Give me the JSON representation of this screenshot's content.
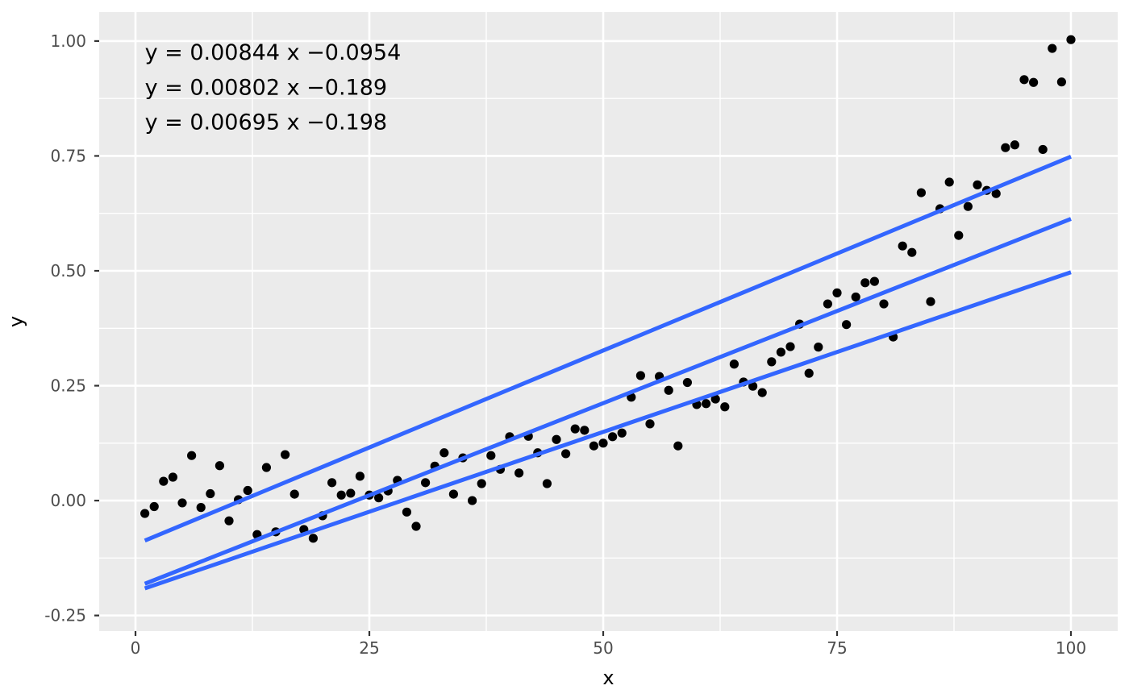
{
  "chart_data": {
    "type": "scatter",
    "title": "",
    "xlabel": "x",
    "ylabel": "y",
    "xlim": [
      -3.88,
      105.0
    ],
    "ylim": [
      -0.284,
      1.063
    ],
    "grid": true,
    "legend": "none",
    "x_ticks": [
      {
        "value": 0,
        "label": "0"
      },
      {
        "value": 25,
        "label": "25"
      },
      {
        "value": 50,
        "label": "50"
      },
      {
        "value": 75,
        "label": "75"
      },
      {
        "value": 100,
        "label": "100"
      }
    ],
    "y_ticks": [
      {
        "value": -0.25,
        "label": "-0.25"
      },
      {
        "value": 0.0,
        "label": "0.00"
      },
      {
        "value": 0.25,
        "label": "0.25"
      },
      {
        "value": 0.5,
        "label": "0.50"
      },
      {
        "value": 0.75,
        "label": "0.75"
      },
      {
        "value": 1.0,
        "label": "1.00"
      }
    ],
    "x_minor_ticks": [
      12.5,
      37.5,
      62.5,
      87.5
    ],
    "y_minor_ticks": [
      -0.125,
      0.125,
      0.375,
      0.625,
      0.875
    ],
    "points": [
      [
        1,
        -0.028
      ],
      [
        2,
        -0.013
      ],
      [
        3,
        0.042
      ],
      [
        4,
        0.051
      ],
      [
        5,
        -0.005
      ],
      [
        6,
        0.098
      ],
      [
        7,
        -0.015
      ],
      [
        8,
        0.015
      ],
      [
        9,
        0.076
      ],
      [
        10,
        -0.044
      ],
      [
        11,
        0.002
      ],
      [
        12,
        0.022
      ],
      [
        13,
        -0.074
      ],
      [
        14,
        0.072
      ],
      [
        15,
        -0.068
      ],
      [
        16,
        0.1
      ],
      [
        17,
        0.014
      ],
      [
        18,
        -0.063
      ],
      [
        19,
        -0.082
      ],
      [
        20,
        -0.033
      ],
      [
        21,
        0.039
      ],
      [
        22,
        0.012
      ],
      [
        23,
        0.016
      ],
      [
        24,
        0.053
      ],
      [
        25,
        0.012
      ],
      [
        26,
        0.006
      ],
      [
        27,
        0.021
      ],
      [
        28,
        0.044
      ],
      [
        29,
        -0.025
      ],
      [
        30,
        -0.056
      ],
      [
        31,
        0.039
      ],
      [
        32,
        0.075
      ],
      [
        33,
        0.104
      ],
      [
        34,
        0.014
      ],
      [
        35,
        0.093
      ],
      [
        36,
        0.0
      ],
      [
        37,
        0.037
      ],
      [
        38,
        0.098
      ],
      [
        39,
        0.068
      ],
      [
        40,
        0.139
      ],
      [
        41,
        0.06
      ],
      [
        42,
        0.14
      ],
      [
        43,
        0.104
      ],
      [
        44,
        0.037
      ],
      [
        45,
        0.133
      ],
      [
        46,
        0.102
      ],
      [
        47,
        0.156
      ],
      [
        48,
        0.153
      ],
      [
        49,
        0.119
      ],
      [
        50,
        0.125
      ],
      [
        51,
        0.139
      ],
      [
        52,
        0.147
      ],
      [
        53,
        0.225
      ],
      [
        54,
        0.272
      ],
      [
        55,
        0.167
      ],
      [
        56,
        0.27
      ],
      [
        57,
        0.24
      ],
      [
        58,
        0.119
      ],
      [
        59,
        0.257
      ],
      [
        60,
        0.209
      ],
      [
        61,
        0.211
      ],
      [
        62,
        0.221
      ],
      [
        63,
        0.204
      ],
      [
        64,
        0.297
      ],
      [
        65,
        0.258
      ],
      [
        66,
        0.249
      ],
      [
        67,
        0.235
      ],
      [
        68,
        0.302
      ],
      [
        69,
        0.323
      ],
      [
        70,
        0.335
      ],
      [
        71,
        0.384
      ],
      [
        72,
        0.277
      ],
      [
        73,
        0.334
      ],
      [
        74,
        0.428
      ],
      [
        75,
        0.452
      ],
      [
        76,
        0.383
      ],
      [
        77,
        0.443
      ],
      [
        78,
        0.474
      ],
      [
        79,
        0.477
      ],
      [
        80,
        0.428
      ],
      [
        81,
        0.356
      ],
      [
        82,
        0.554
      ],
      [
        83,
        0.54
      ],
      [
        84,
        0.67
      ],
      [
        85,
        0.433
      ],
      [
        86,
        0.635
      ],
      [
        87,
        0.693
      ],
      [
        88,
        0.577
      ],
      [
        89,
        0.64
      ],
      [
        90,
        0.687
      ],
      [
        91,
        0.675
      ],
      [
        92,
        0.668
      ],
      [
        93,
        0.768
      ],
      [
        94,
        0.774
      ],
      [
        95,
        0.916
      ],
      [
        96,
        0.91
      ],
      [
        97,
        0.764
      ],
      [
        98,
        0.984
      ],
      [
        99,
        0.911
      ],
      [
        100,
        1.003
      ]
    ],
    "smooth_lines": [
      {
        "equation": "y = 0.00844 x −0.0954",
        "slope": 0.00844,
        "intercept": -0.0954,
        "x_start": 1,
        "x_end": 100
      },
      {
        "equation": "y = 0.00802 x −0.189",
        "slope": 0.00802,
        "intercept": -0.189,
        "x_start": 1,
        "x_end": 100
      },
      {
        "equation": "y = 0.00695 x −0.198",
        "slope": 0.00695,
        "intercept": -0.198,
        "x_start": 1,
        "x_end": 100
      }
    ],
    "annotations": [
      {
        "text": "y = 0.00844 x −0.0954",
        "x": 1,
        "y": 0.974
      },
      {
        "text": "y = 0.00802 x −0.189",
        "x": 1,
        "y": 0.898
      },
      {
        "text": "y = 0.00695 x −0.198",
        "x": 1,
        "y": 0.823
      }
    ],
    "colors": {
      "outer_background": "#FFFFFF",
      "panel_background": "#EBEBEB",
      "grid": "#FFFFFF",
      "point": "#000000",
      "smooth_line": "#3366FF",
      "tick_mark": "#333333",
      "tick_label": "#4D4D4D",
      "axis_title": "#000000",
      "annotation_text": "#000000"
    }
  }
}
